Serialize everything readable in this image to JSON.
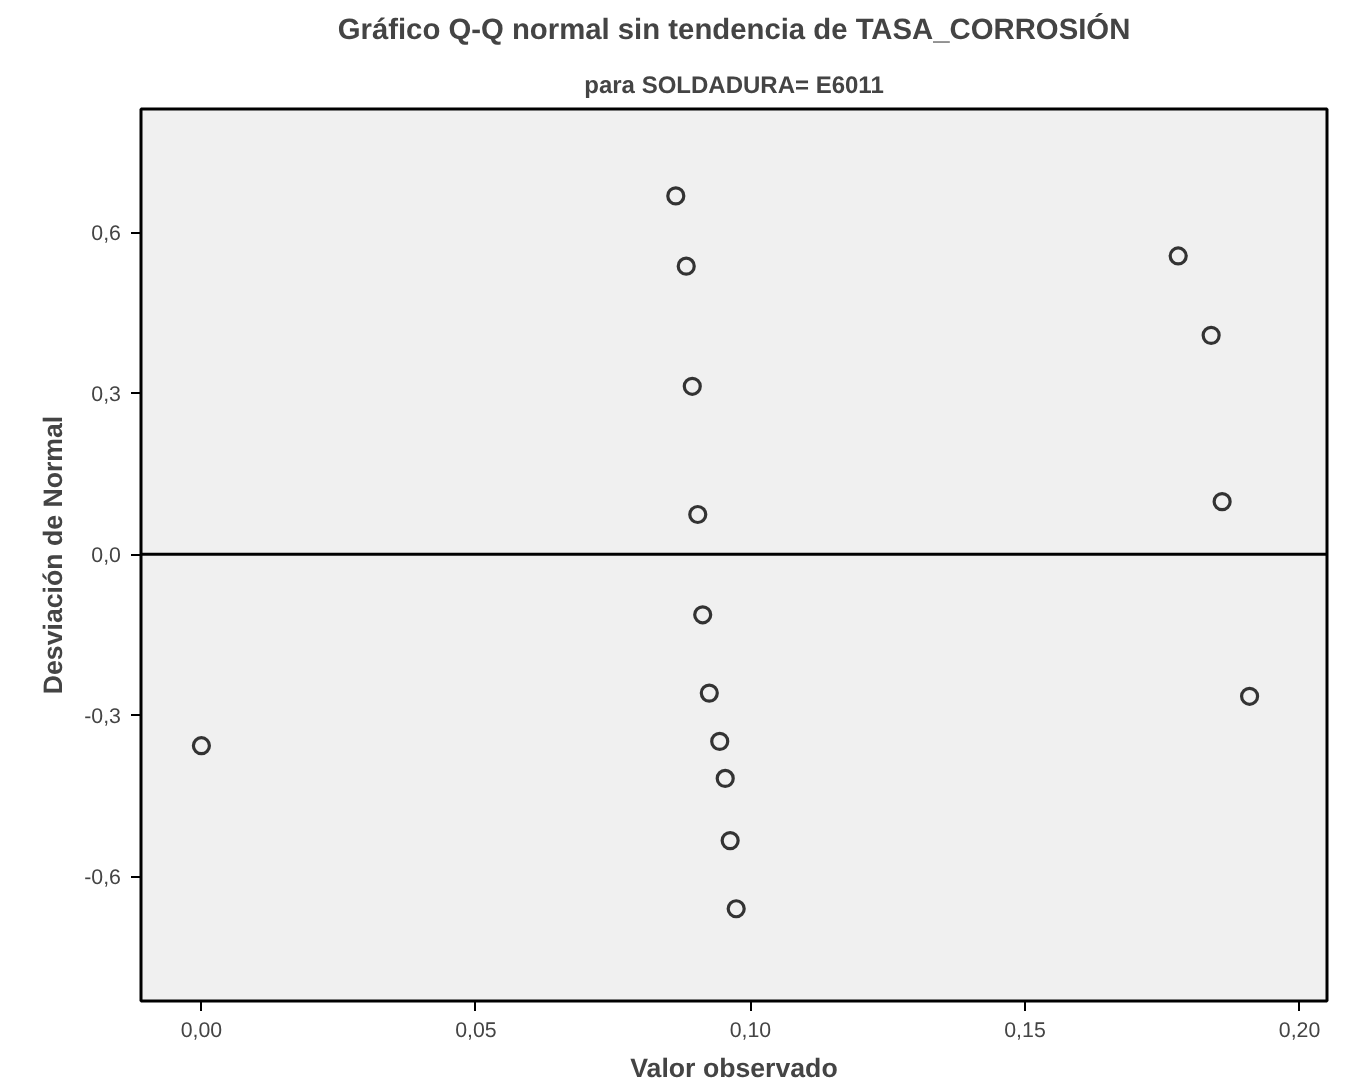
{
  "chart_data": {
    "type": "scatter",
    "title": "Gráfico Q-Q normal sin tendencia de TASA_CORROSIÓN",
    "subtitle": "para SOLDADURA= E6011",
    "xlabel": "Valor observado",
    "ylabel": "Desviación de Normal",
    "x": [
      0.0864,
      0.0883,
      0.0894,
      0.0904,
      0.0913,
      0.0925,
      0.0944,
      0.0954,
      0.0963,
      0.0974,
      0.0,
      0.1779,
      0.1839,
      0.1859,
      0.1909
    ],
    "values": [
      0.668,
      0.537,
      0.313,
      0.074,
      -0.113,
      -0.259,
      -0.349,
      -0.418,
      -0.534,
      -0.661,
      -0.357,
      0.556,
      0.408,
      0.098,
      -0.265
    ],
    "color": "#333333",
    "marker": "circle",
    "grid": false,
    "xlim": [
      -0.011,
      0.205
    ],
    "ylim": [
      -0.833,
      0.83
    ],
    "xticks": [
      {
        "value": 0,
        "label": "0,00"
      },
      {
        "value": 0.05,
        "label": "0,05"
      },
      {
        "value": 0.1,
        "label": "0,10"
      },
      {
        "value": 0.15,
        "label": "0,15"
      },
      {
        "value": 0.2,
        "label": "0,20"
      }
    ],
    "yticks": [
      {
        "value": -0.6,
        "label": "-0,6"
      },
      {
        "value": -0.3,
        "label": "-0,3"
      },
      {
        "value": 0,
        "label": "0,0"
      },
      {
        "value": 0.3,
        "label": "0,3"
      },
      {
        "value": 0.6,
        "label": "0,6"
      }
    ],
    "ref_lines": [
      {
        "axis": "y",
        "value": 0,
        "label": null,
        "color": "#000000"
      }
    ]
  }
}
